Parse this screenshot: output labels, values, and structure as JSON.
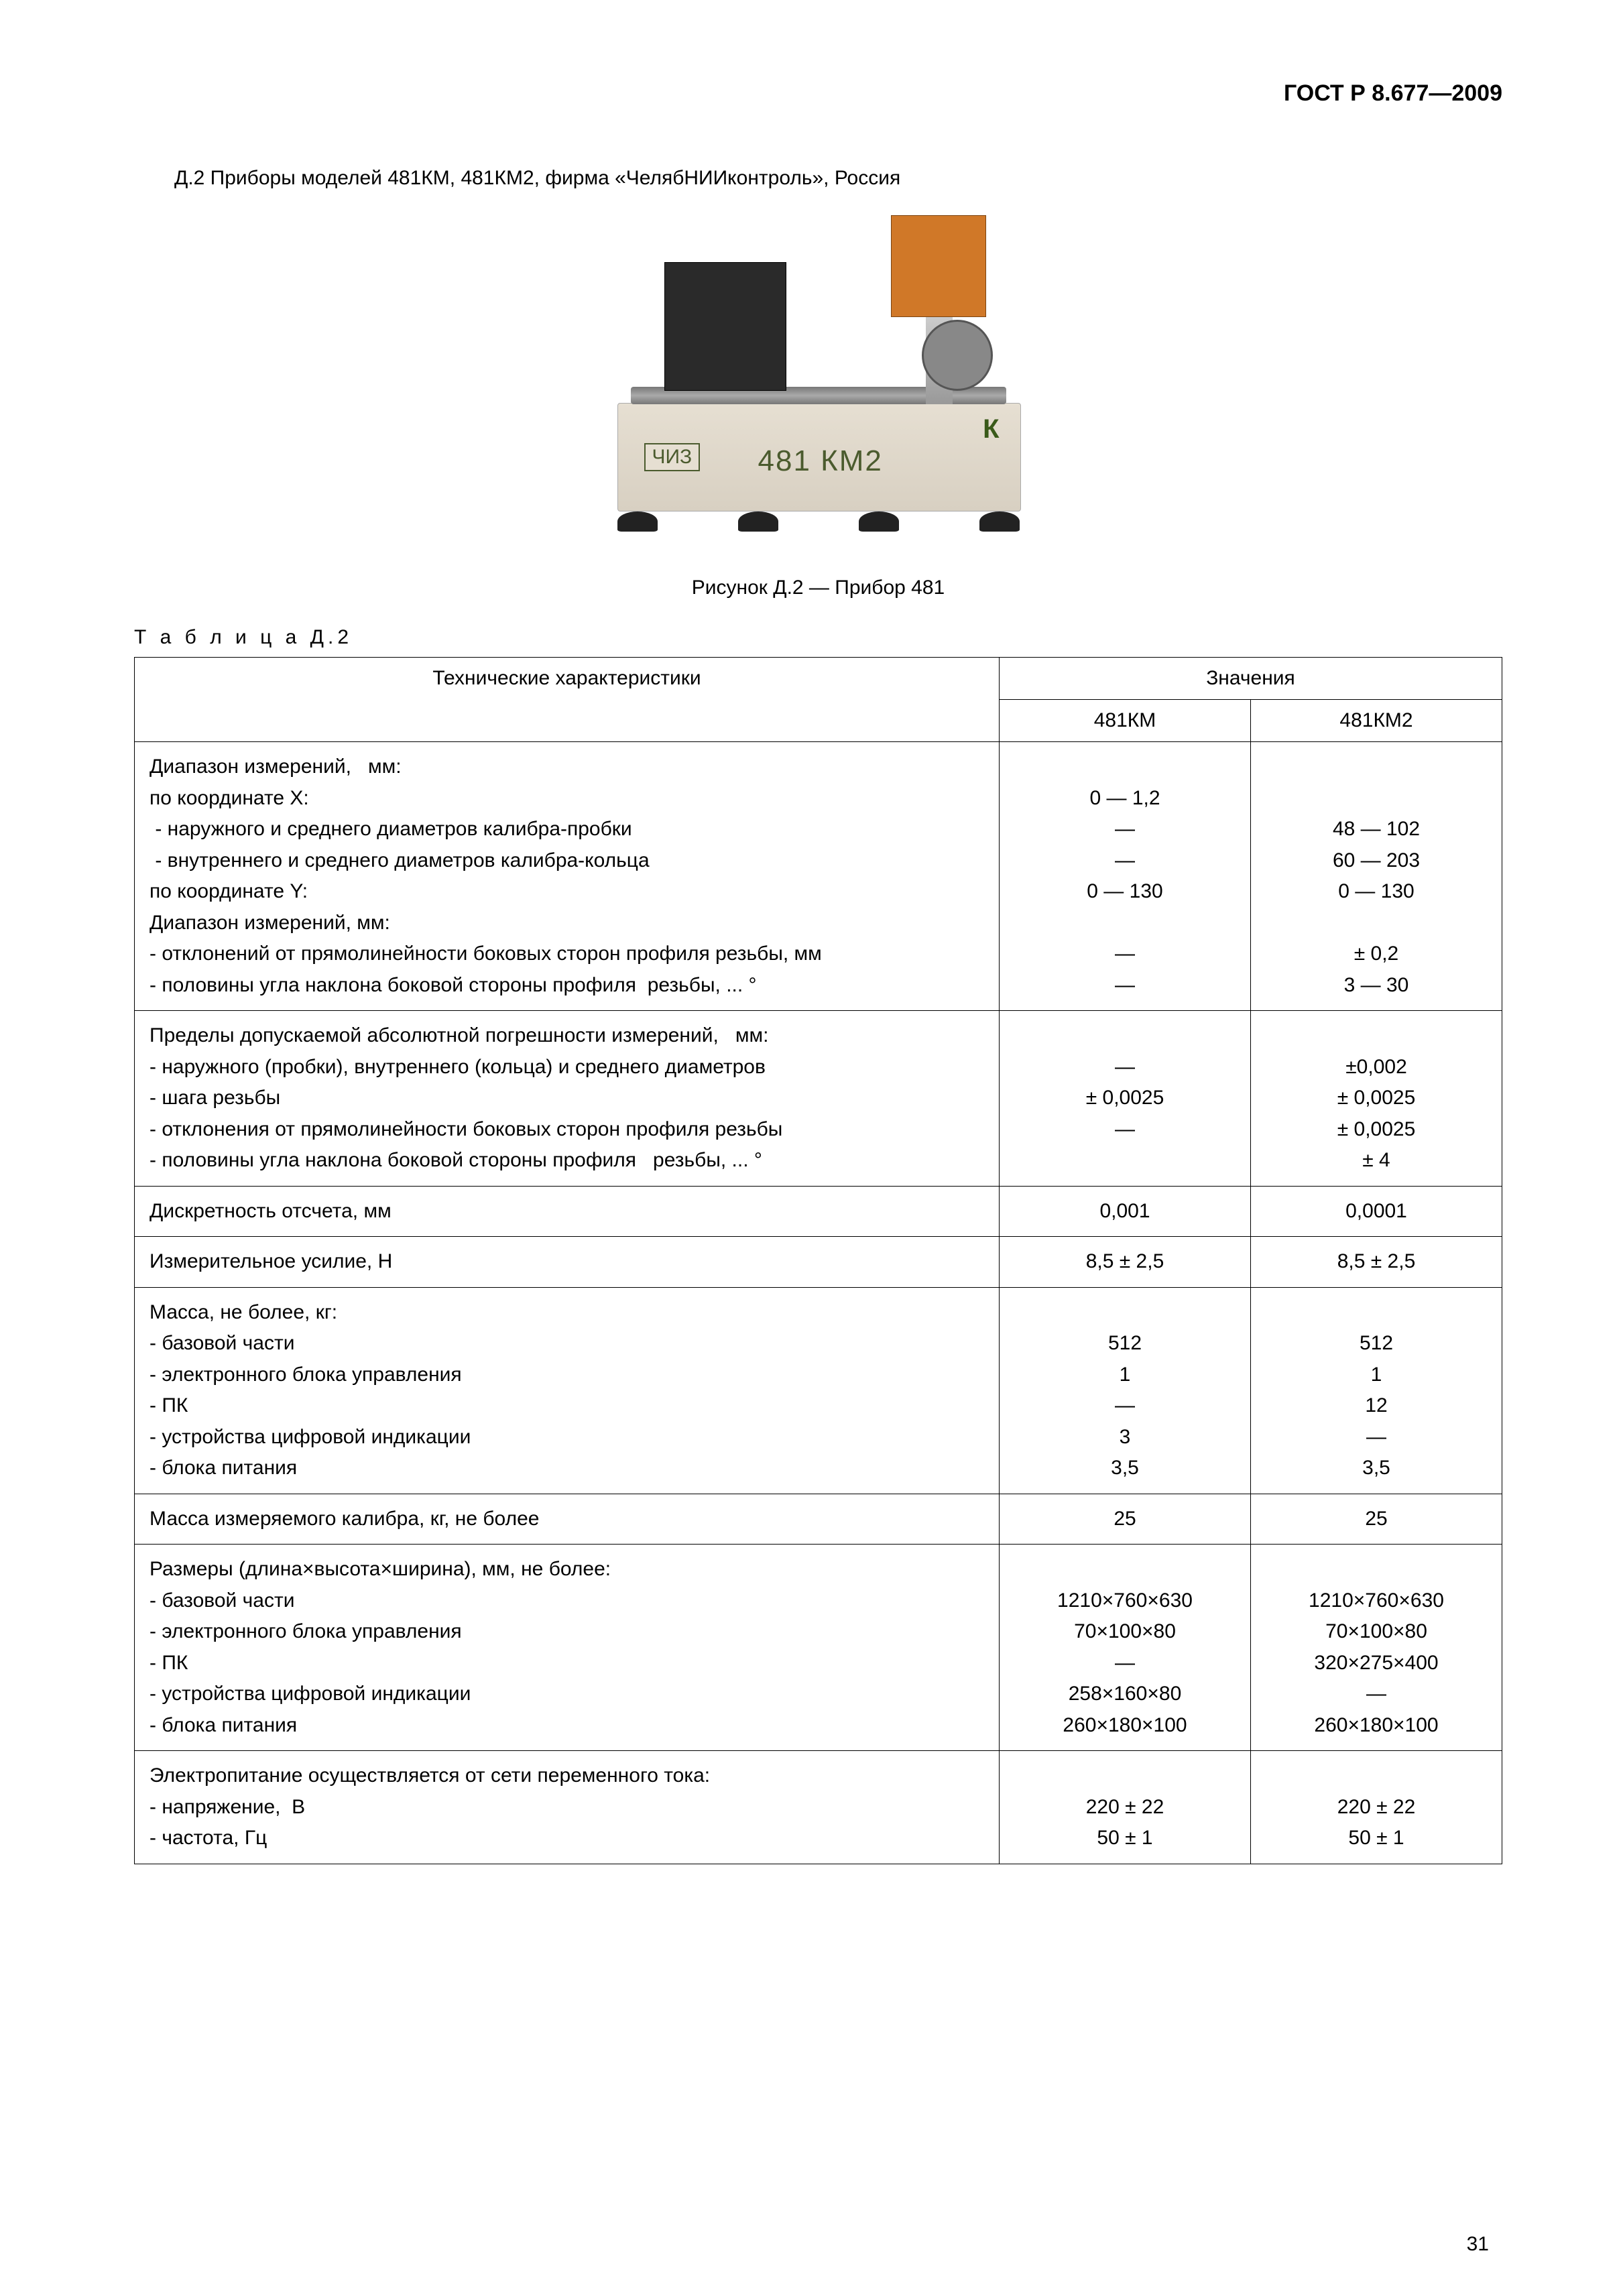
{
  "doc_id": "ГОСТ Р 8.677—2009",
  "intro": "Д.2 Приборы моделей 481КМ, 481КМ2, фирма «ЧелябНИИконтроль», Россия",
  "device_labels": {
    "maker": "ЧИЗ",
    "model": "481 КМ2",
    "logo": "К"
  },
  "figure_caption": "Рисунок Д.2 — Прибор 481",
  "table_label": "Т а б л и ц а  Д.2",
  "table": {
    "header_param": "Технические характеристики",
    "header_values": "Значения",
    "col1": "481КМ",
    "col2": "481КМ2",
    "rows": [
      {
        "param": [
          "Диапазон измерений,   мм:",
          "по координате X:",
          " - наружного и среднего диаметров калибра-пробки",
          " - внутреннего и среднего диаметров калибра-кольца",
          "по координате Y:",
          "Диапазон измерений, мм:",
          "- отклонений от прямолинейности боковых сторон профиля резьбы, мм",
          "- половины угла наклона боковой стороны профиля  резьбы, ... °"
        ],
        "v1": [
          "",
          "0 — 1,2",
          "—",
          "—",
          "0 — 130",
          "",
          "—",
          "—"
        ],
        "v2": [
          "",
          "",
          "48 — 102",
          "60 — 203",
          "0 — 130",
          "",
          "± 0,2",
          "3 — 30"
        ]
      },
      {
        "param": [
          "Пределы допускаемой абсолютной погрешности измерений,   мм:",
          "- наружного (пробки), внутреннего (кольца) и среднего диаметров",
          "- шага резьбы",
          "- отклонения от прямолинейности боковых сторон профиля резьбы",
          "- половины угла наклона боковой стороны профиля   резьбы, ... °"
        ],
        "v1": [
          "",
          "—",
          "± 0,0025",
          "—",
          ""
        ],
        "v2": [
          "",
          "±0,002",
          "± 0,0025",
          "± 0,0025",
          "± 4"
        ]
      },
      {
        "param": [
          "Дискретность отсчета, мм"
        ],
        "v1": [
          "0,001"
        ],
        "v2": [
          "0,0001"
        ]
      },
      {
        "param": [
          "Измерительное усилие, Н"
        ],
        "v1": [
          "8,5 ± 2,5"
        ],
        "v2": [
          "8,5 ± 2,5"
        ]
      },
      {
        "param": [
          "Масса, не более, кг:",
          "- базовой части",
          "- электронного блока управления",
          "- ПК",
          "- устройства цифровой индикации",
          "- блока питания"
        ],
        "v1": [
          "",
          "512",
          "1",
          "—",
          "3",
          "3,5"
        ],
        "v2": [
          "",
          "512",
          "1",
          "12",
          "—",
          "3,5"
        ]
      },
      {
        "param": [
          "Масса измеряемого калибра, кг, не более"
        ],
        "v1": [
          "25"
        ],
        "v2": [
          "25"
        ]
      },
      {
        "param": [
          "Размеры (длина×высота×ширина), мм, не более:",
          "- базовой части",
          "- электронного блока управления",
          "- ПК",
          "- устройства цифровой индикации",
          "- блока питания"
        ],
        "v1": [
          "",
          "1210×760×630",
          "70×100×80",
          "—",
          "258×160×80",
          "260×180×100"
        ],
        "v2": [
          "",
          "1210×760×630",
          "70×100×80",
          "320×275×400",
          "—",
          "260×180×100"
        ]
      },
      {
        "param": [
          "Электропитание осуществляется от сети переменного тока:",
          "- напряжение,  В",
          "- частота, Гц"
        ],
        "v1": [
          "",
          "220 ± 22",
          "50 ± 1"
        ],
        "v2": [
          "",
          "220 ± 22",
          "50 ± 1"
        ]
      }
    ]
  },
  "page_number": "31"
}
